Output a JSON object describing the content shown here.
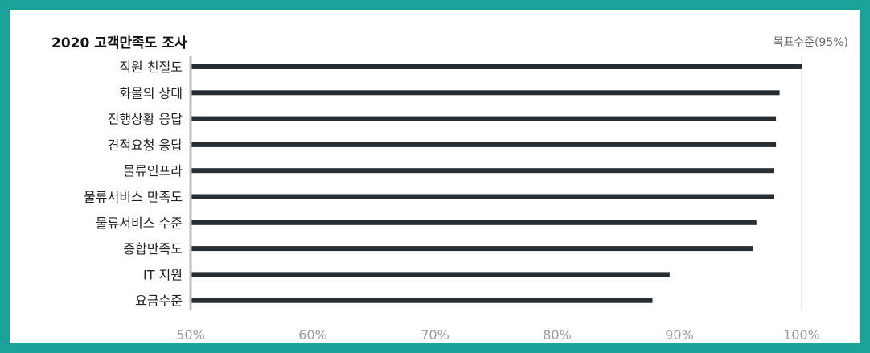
{
  "chart_data": {
    "type": "bar",
    "orientation": "horizontal",
    "title": "2020 고객만족도 조사",
    "annotation": "목표수준(95%)",
    "categories": [
      "직원 친절도",
      "화물의 상태",
      "진행상황 응답",
      "견적요청 응답",
      "물류인프라",
      "물류서비스 만족도",
      "물류서비스 수준",
      "종합만족도",
      "IT 지원",
      "요금수준"
    ],
    "values": [
      100,
      98.2,
      97.9,
      97.9,
      97.7,
      97.7,
      96.3,
      96.0,
      89.2,
      87.8
    ],
    "xlim": [
      50,
      100
    ],
    "xticks": [
      50,
      60,
      70,
      80,
      90,
      100
    ],
    "xtick_labels": [
      "50%",
      "60%",
      "70%",
      "80%",
      "90%",
      "100%"
    ],
    "grid": false,
    "legend": "none",
    "colors": {
      "bar": "#262e33",
      "frame": "#1aa39b",
      "axis": "#bdbdbd",
      "tick_text": "#9a9a9a"
    }
  }
}
